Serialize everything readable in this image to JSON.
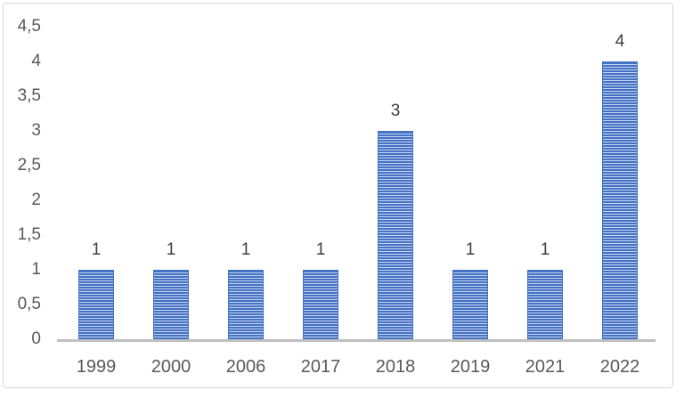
{
  "chart_data": {
    "type": "bar",
    "title": "",
    "xlabel": "",
    "ylabel": "",
    "categories": [
      "1999",
      "2000",
      "2006",
      "2017",
      "2018",
      "2019",
      "2021",
      "2022"
    ],
    "values": [
      1,
      1,
      1,
      1,
      3,
      1,
      1,
      4
    ],
    "data_labels": [
      "1",
      "1",
      "1",
      "1",
      "3",
      "1",
      "1",
      "4"
    ],
    "y_tick_labels": [
      "0",
      "0,5",
      "1",
      "1,5",
      "2",
      "2,5",
      "3",
      "3,5",
      "4",
      "4,5"
    ],
    "y_tick_values": [
      0,
      0.5,
      1,
      1.5,
      2,
      2.5,
      3,
      3.5,
      4,
      4.5
    ],
    "ylim": [
      0,
      4.5
    ],
    "decimal_separator": ",",
    "grid": "off",
    "legend": "none",
    "colors": {
      "bar_stripe_dark": "#4472c4",
      "bar_stripe_light": "#c8d6f0",
      "bar_border": "#4472c4",
      "axis_line": "#c0c0c0",
      "axis_text": "#595959",
      "data_label_text": "#404040",
      "frame_border": "#d7d7d7",
      "background": "#ffffff"
    }
  }
}
